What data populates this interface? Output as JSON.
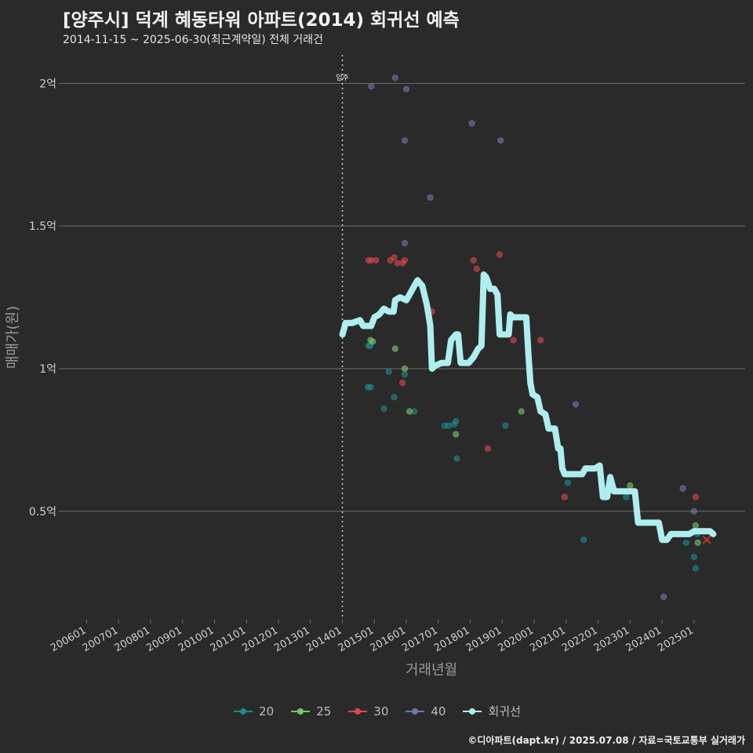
{
  "header": {
    "title": "[양주시] 덕계 혜동타워 아파트(2014) 회귀선 예측",
    "subtitle": "2014-11-15 ~ 2025-06-30(최근계약일) 전체 거래건"
  },
  "credit": "©디아파트(dapt.kr) / 2025.07.08 / 자료=국토교통부 실거래가",
  "colors": {
    "background": "#2b2a2b",
    "grid": "#6e6e6e",
    "s20": "#1f8a8a",
    "s25": "#7cc46a",
    "s30": "#d9474f",
    "s40": "#6d7aa8",
    "regression": "#aeeeee",
    "vline": "#cccccc",
    "latest_marker": "#c0392b"
  },
  "chart_data": {
    "type": "scatter",
    "title": "[양주시] 덕계 혜동타워 아파트(2014) 회귀선 예측",
    "xlabel": "거래년월",
    "ylabel": "매매가(원)",
    "x_range": [
      2005.25,
      2026.6
    ],
    "ylim": [
      0.12,
      2.1
    ],
    "y_unit": "억",
    "yticks": [
      {
        "v": 0.5,
        "label": "0.5억"
      },
      {
        "v": 1.0,
        "label": "1억"
      },
      {
        "v": 1.5,
        "label": "1.5억"
      },
      {
        "v": 2.0,
        "label": "2억"
      }
    ],
    "xticks": [
      {
        "v": 2006,
        "label": "200601"
      },
      {
        "v": 2007,
        "label": "200701"
      },
      {
        "v": 2008,
        "label": "200801"
      },
      {
        "v": 2009,
        "label": "200901"
      },
      {
        "v": 2010,
        "label": "201001"
      },
      {
        "v": 2011,
        "label": "201101"
      },
      {
        "v": 2012,
        "label": "201201"
      },
      {
        "v": 2013,
        "label": "201301"
      },
      {
        "v": 2014,
        "label": "201401"
      },
      {
        "v": 2015,
        "label": "201501"
      },
      {
        "v": 2016,
        "label": "201601"
      },
      {
        "v": 2017,
        "label": "201701"
      },
      {
        "v": 2018,
        "label": "201801"
      },
      {
        "v": 2019,
        "label": "201901"
      },
      {
        "v": 2020,
        "label": "202001"
      },
      {
        "v": 2021,
        "label": "202101"
      },
      {
        "v": 2022,
        "label": "202201"
      },
      {
        "v": 2023,
        "label": "202301"
      },
      {
        "v": 2024,
        "label": "202401"
      },
      {
        "v": 2025,
        "label": "202501"
      }
    ],
    "annotation": {
      "x": 2014.0,
      "label": "입주"
    },
    "legend": [
      {
        "key": "20",
        "label": "20",
        "color": "#1f8a8a"
      },
      {
        "key": "25",
        "label": "25",
        "color": "#7cc46a"
      },
      {
        "key": "30",
        "label": "30",
        "color": "#d9474f"
      },
      {
        "key": "40",
        "label": "40",
        "color": "#6d7aa8"
      },
      {
        "key": "reg",
        "label": "회귀선",
        "color": "#aeeeee"
      }
    ],
    "series": [
      {
        "name": "20",
        "color": "#1f8a8a",
        "points": [
          [
            2014.82,
            1.08
          ],
          [
            2014.87,
            1.08
          ],
          [
            2014.8,
            0.935
          ],
          [
            2014.88,
            0.935
          ],
          [
            2015.3,
            0.86
          ],
          [
            2015.45,
            0.99
          ],
          [
            2015.62,
            0.9
          ],
          [
            2015.95,
            0.98
          ],
          [
            2016.25,
            0.85
          ],
          [
            2017.2,
            0.8
          ],
          [
            2017.32,
            0.8
          ],
          [
            2017.5,
            0.805
          ],
          [
            2017.55,
            0.815
          ],
          [
            2017.58,
            0.685
          ],
          [
            2019.1,
            0.8
          ],
          [
            2021.05,
            0.6
          ],
          [
            2021.55,
            0.4
          ],
          [
            2022.88,
            0.55
          ],
          [
            2024.75,
            0.39
          ],
          [
            2025.0,
            0.34
          ],
          [
            2025.05,
            0.3
          ],
          [
            2025.1,
            0.42
          ]
        ]
      },
      {
        "name": "25",
        "color": "#7cc46a",
        "points": [
          [
            2014.88,
            1.1
          ],
          [
            2014.95,
            1.095
          ],
          [
            2015.65,
            1.07
          ],
          [
            2015.95,
            1.0
          ],
          [
            2016.1,
            0.85
          ],
          [
            2017.55,
            0.77
          ],
          [
            2019.6,
            0.85
          ],
          [
            2023.0,
            0.59
          ],
          [
            2025.05,
            0.45
          ],
          [
            2025.12,
            0.39
          ]
        ]
      },
      {
        "name": "30",
        "color": "#d9474f",
        "points": [
          [
            2014.82,
            1.38
          ],
          [
            2014.9,
            1.38
          ],
          [
            2015.05,
            1.38
          ],
          [
            2015.5,
            1.38
          ],
          [
            2015.62,
            1.39
          ],
          [
            2015.72,
            1.37
          ],
          [
            2015.88,
            1.37
          ],
          [
            2015.95,
            1.38
          ],
          [
            2015.88,
            0.95
          ],
          [
            2016.8,
            1.2
          ],
          [
            2018.1,
            1.38
          ],
          [
            2018.2,
            1.35
          ],
          [
            2018.55,
            0.72
          ],
          [
            2018.92,
            1.4
          ],
          [
            2019.35,
            1.1
          ],
          [
            2020.2,
            1.1
          ],
          [
            2020.95,
            0.55
          ],
          [
            2025.05,
            0.55
          ]
        ]
      },
      {
        "name": "40",
        "color": "#6d7aa8",
        "points": [
          [
            2014.9,
            1.99
          ],
          [
            2015.65,
            2.02
          ],
          [
            2016.0,
            1.98
          ],
          [
            2015.95,
            1.8
          ],
          [
            2016.75,
            1.6
          ],
          [
            2015.95,
            1.44
          ],
          [
            2018.05,
            1.86
          ],
          [
            2018.95,
            1.8
          ],
          [
            2021.3,
            0.875
          ],
          [
            2024.65,
            0.58
          ],
          [
            2024.05,
            0.2
          ],
          [
            2025.0,
            0.5
          ]
        ]
      }
    ],
    "regression": [
      [
        2014.0,
        1.12
      ],
      [
        2014.1,
        1.16
      ],
      [
        2014.3,
        1.16
      ],
      [
        2014.55,
        1.17
      ],
      [
        2014.65,
        1.15
      ],
      [
        2014.9,
        1.15
      ],
      [
        2015.0,
        1.18
      ],
      [
        2015.15,
        1.19
      ],
      [
        2015.3,
        1.21
      ],
      [
        2015.45,
        1.2
      ],
      [
        2015.6,
        1.2
      ],
      [
        2015.65,
        1.24
      ],
      [
        2015.8,
        1.25
      ],
      [
        2016.0,
        1.24
      ],
      [
        2016.1,
        1.26
      ],
      [
        2016.25,
        1.29
      ],
      [
        2016.35,
        1.31
      ],
      [
        2016.5,
        1.29
      ],
      [
        2016.65,
        1.22
      ],
      [
        2016.75,
        1.15
      ],
      [
        2016.8,
        1.0
      ],
      [
        2016.9,
        1.01
      ],
      [
        2017.1,
        1.02
      ],
      [
        2017.3,
        1.02
      ],
      [
        2017.4,
        1.1
      ],
      [
        2017.55,
        1.12
      ],
      [
        2017.62,
        1.12
      ],
      [
        2017.7,
        1.02
      ],
      [
        2017.8,
        1.02
      ],
      [
        2017.95,
        1.02
      ],
      [
        2018.1,
        1.04
      ],
      [
        2018.25,
        1.07
      ],
      [
        2018.35,
        1.08
      ],
      [
        2018.42,
        1.33
      ],
      [
        2018.5,
        1.32
      ],
      [
        2018.62,
        1.28
      ],
      [
        2018.75,
        1.28
      ],
      [
        2018.85,
        1.26
      ],
      [
        2018.92,
        1.12
      ],
      [
        2019.2,
        1.12
      ],
      [
        2019.25,
        1.19
      ],
      [
        2019.35,
        1.18
      ],
      [
        2019.75,
        1.18
      ],
      [
        2019.82,
        1.05
      ],
      [
        2019.88,
        0.95
      ],
      [
        2019.95,
        0.91
      ],
      [
        2020.1,
        0.9
      ],
      [
        2020.2,
        0.85
      ],
      [
        2020.35,
        0.84
      ],
      [
        2020.45,
        0.79
      ],
      [
        2020.65,
        0.79
      ],
      [
        2020.75,
        0.72
      ],
      [
        2020.82,
        0.72
      ],
      [
        2020.88,
        0.65
      ],
      [
        2020.95,
        0.63
      ],
      [
        2021.5,
        0.63
      ],
      [
        2021.6,
        0.65
      ],
      [
        2021.9,
        0.65
      ],
      [
        2022.05,
        0.66
      ],
      [
        2022.15,
        0.55
      ],
      [
        2022.28,
        0.55
      ],
      [
        2022.38,
        0.62
      ],
      [
        2022.5,
        0.57
      ],
      [
        2022.7,
        0.57
      ],
      [
        2023.15,
        0.57
      ],
      [
        2023.25,
        0.46
      ],
      [
        2023.65,
        0.46
      ],
      [
        2023.9,
        0.46
      ],
      [
        2024.0,
        0.4
      ],
      [
        2024.15,
        0.4
      ],
      [
        2024.28,
        0.42
      ],
      [
        2024.85,
        0.42
      ],
      [
        2025.0,
        0.43
      ],
      [
        2025.5,
        0.43
      ],
      [
        2025.6,
        0.42
      ]
    ],
    "latest": [
      2025.4,
      0.4
    ]
  }
}
